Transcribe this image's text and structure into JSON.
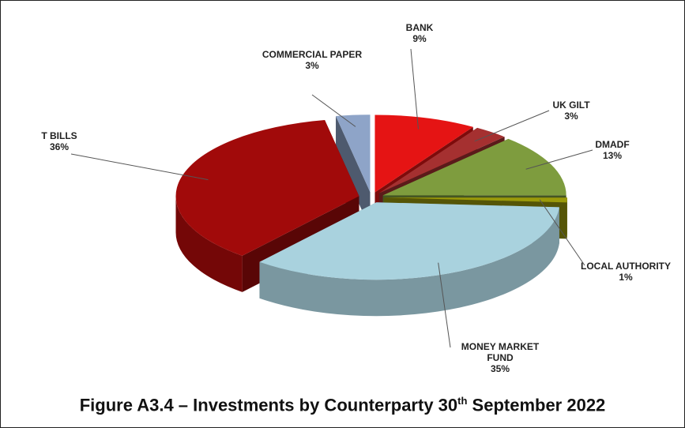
{
  "chart_data": {
    "type": "pie3d",
    "title": [
      "Figure A3.4 – Investments by Counterparty 30",
      "th",
      " September 2022"
    ],
    "categories": [
      "BANK",
      "UK GILT",
      "DMADF",
      "LOCAL AUTHORITY",
      "MONEY MARKET FUND",
      "T BILLS",
      "COMMERCIAL PAPER"
    ],
    "values": [
      9,
      3,
      13,
      1,
      35,
      36,
      3
    ],
    "value_labels": [
      "9%",
      "3%",
      "13%",
      "1%",
      "35%",
      "36%",
      "3%"
    ],
    "colors": [
      "#e51414",
      "#a53030",
      "#7e9c3e",
      "#9a9a0a",
      "#a9d2de",
      "#a10a0a",
      "#8ea4c8"
    ]
  }
}
